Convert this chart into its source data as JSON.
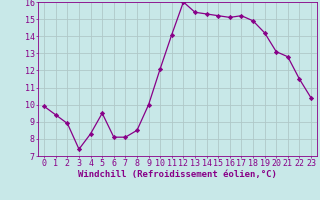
{
  "x": [
    0,
    1,
    2,
    3,
    4,
    5,
    6,
    7,
    8,
    9,
    10,
    11,
    12,
    13,
    14,
    15,
    16,
    17,
    18,
    19,
    20,
    21,
    22,
    23
  ],
  "y": [
    9.9,
    9.4,
    8.9,
    7.4,
    8.3,
    9.5,
    8.1,
    8.1,
    8.5,
    10.0,
    12.1,
    14.1,
    16.0,
    15.4,
    15.3,
    15.2,
    15.1,
    15.2,
    14.9,
    14.2,
    13.1,
    12.8,
    11.5,
    10.4
  ],
  "line_color": "#880088",
  "marker": "D",
  "marker_size": 2.2,
  "bg_color": "#c8e8e8",
  "grid_color": "#b0c8c8",
  "xlabel": "Windchill (Refroidissement éolien,°C)",
  "xlabel_color": "#880088",
  "tick_color": "#880088",
  "spine_color": "#880088",
  "xlim": [
    -0.5,
    23.5
  ],
  "ylim": [
    7,
    16
  ],
  "yticks": [
    7,
    8,
    9,
    10,
    11,
    12,
    13,
    14,
    15,
    16
  ],
  "xticks": [
    0,
    1,
    2,
    3,
    4,
    5,
    6,
    7,
    8,
    9,
    10,
    11,
    12,
    13,
    14,
    15,
    16,
    17,
    18,
    19,
    20,
    21,
    22,
    23
  ],
  "tick_font_size": 6.0,
  "label_font_size": 6.5,
  "linewidth": 0.9
}
